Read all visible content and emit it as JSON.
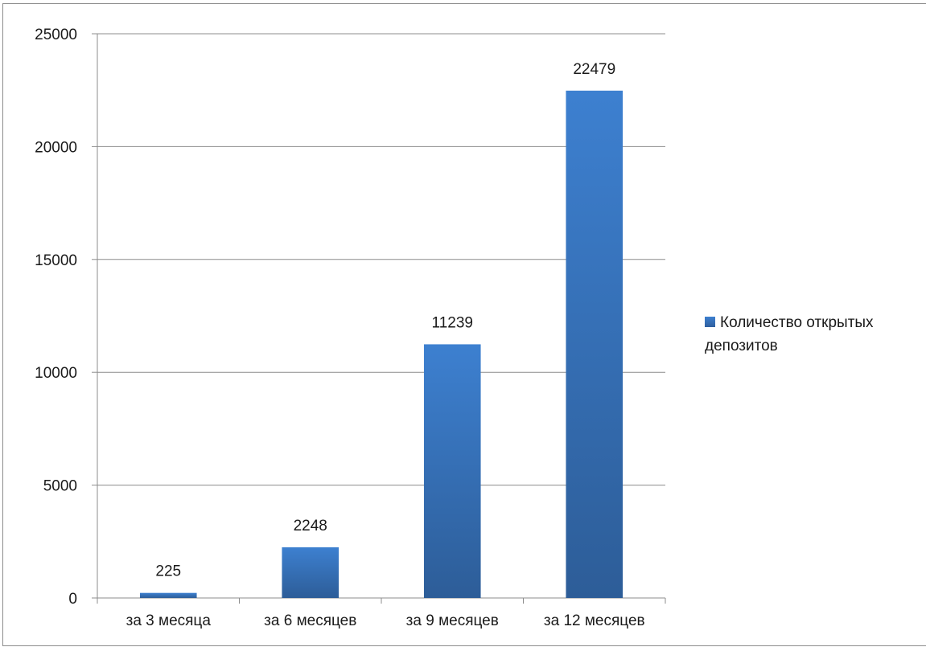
{
  "chart_data": {
    "type": "bar",
    "categories": [
      "за 3 месяца",
      "за 6 месяцев",
      "за 9 месяцев",
      "за 12 месяцев"
    ],
    "series": [
      {
        "name": "Количество открытых депозитов",
        "values": [
          225,
          2248,
          11239,
          22479
        ]
      }
    ],
    "data_labels": [
      "225",
      "2248",
      "11239",
      "22479"
    ],
    "y_ticks": [
      0,
      5000,
      10000,
      15000,
      20000,
      25000
    ],
    "ylim": [
      0,
      25000
    ],
    "title": "",
    "xlabel": "",
    "ylabel": "",
    "grid": true,
    "legend_position": "right",
    "colors": {
      "bar_top": "#3d80d0",
      "bar_bottom": "#2d5d98",
      "grid": "#8c8c8c",
      "text": "#1a1a1a"
    }
  }
}
